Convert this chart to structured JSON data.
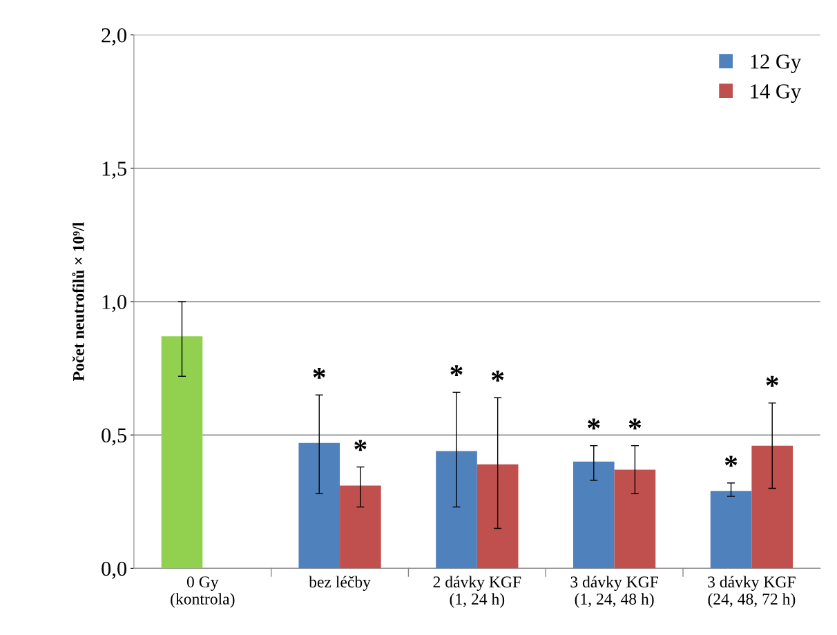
{
  "chart_data": {
    "type": "bar",
    "ylabel": "Počet neutrofilů × 10⁹/l",
    "categories": [
      "0 Gy\n(kontrola)",
      "bez léčby",
      "2 dávky KGF\n(1, 24 h)",
      "3 dávky KGF\n(1, 24, 48 h)",
      "3 dávky KGF\n(24, 48, 72 h)"
    ],
    "series": [
      {
        "name": "12 Gy",
        "color": "#4f81bd",
        "colors": [
          "#92d050",
          "#4f81bd",
          "#4f81bd",
          "#4f81bd",
          "#4f81bd"
        ],
        "values": [
          0.87,
          0.47,
          0.44,
          0.4,
          0.29
        ],
        "value_labels": [
          null,
          "*",
          "*",
          "*",
          "*"
        ],
        "errors": [
          [
            0.72,
            1.0
          ],
          [
            0.28,
            0.65
          ],
          [
            0.23,
            0.66
          ],
          [
            0.33,
            0.46
          ],
          [
            0.27,
            0.32
          ]
        ]
      },
      {
        "name": "14 Gy",
        "color": "#c0504d",
        "values": [
          null,
          0.31,
          0.39,
          0.37,
          0.46
        ],
        "value_labels": [
          null,
          "*",
          "*",
          "*",
          "*"
        ],
        "errors": [
          null,
          [
            0.23,
            0.38
          ],
          [
            0.15,
            0.64
          ],
          [
            0.28,
            0.46
          ],
          [
            0.3,
            0.62
          ]
        ]
      }
    ],
    "ylim": [
      0,
      2.0
    ],
    "yticks": [
      {
        "value": 0,
        "label": "0,0"
      },
      {
        "value": 0.5,
        "label": "0,5"
      },
      {
        "value": 1.0,
        "label": "1,0"
      },
      {
        "value": 1.5,
        "label": "1,5"
      },
      {
        "value": 2.0,
        "label": "2,0"
      }
    ],
    "grid": "y",
    "legend": "top right"
  }
}
